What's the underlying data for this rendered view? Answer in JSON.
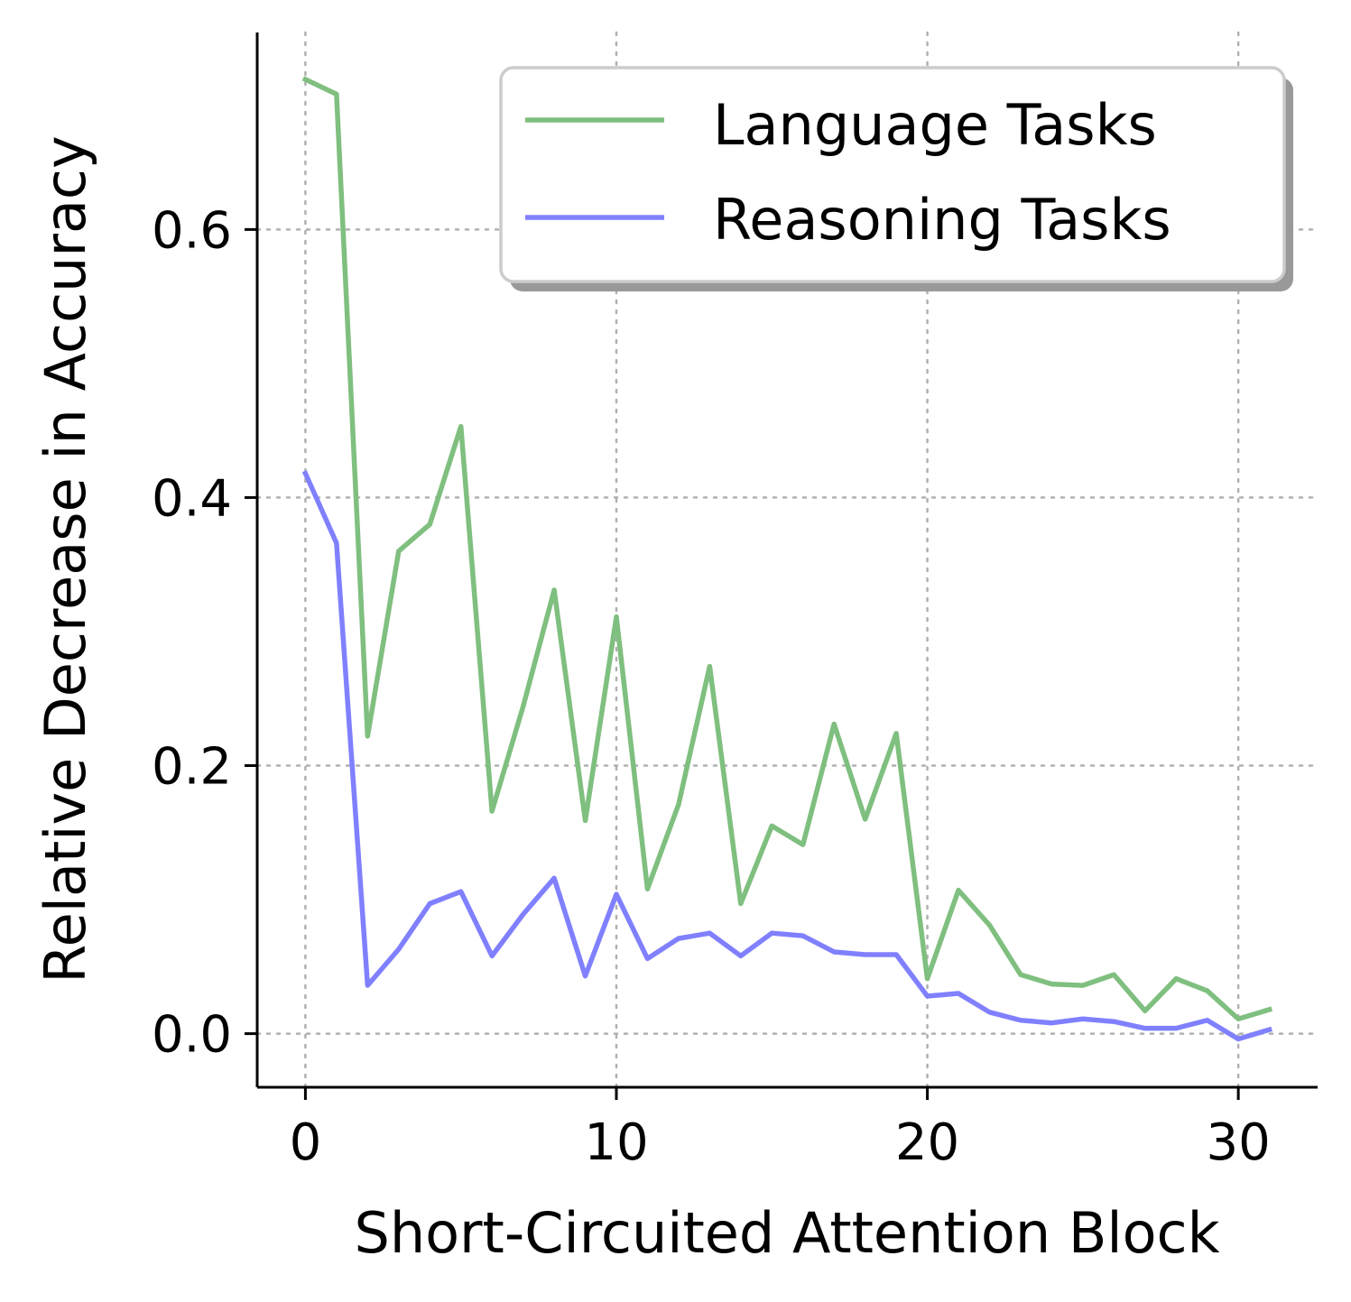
{
  "chart_data": {
    "type": "line",
    "title": "",
    "xlabel": "Short-Circuited Attention Block",
    "ylabel": "Relative Decrease in Accuracy",
    "xlim": [
      -1.55,
      32.55
    ],
    "ylim": [
      -0.04,
      0.747
    ],
    "xticks": [
      0,
      10,
      20,
      30
    ],
    "xtick_labels": [
      "0",
      "10",
      "20",
      "30"
    ],
    "yticks": [
      0.0,
      0.2,
      0.4,
      0.6
    ],
    "ytick_labels": [
      "0.0",
      "0.2",
      "0.4",
      "0.6"
    ],
    "grid": true,
    "legend_position": "top-right",
    "x": [
      0,
      1,
      2,
      3,
      4,
      5,
      6,
      7,
      8,
      9,
      10,
      11,
      12,
      13,
      14,
      15,
      16,
      17,
      18,
      19,
      20,
      21,
      22,
      23,
      24,
      25,
      26,
      27,
      28,
      29,
      30,
      31
    ],
    "series": [
      {
        "name": "Language Tasks",
        "color": "#7fbf7f",
        "values": [
          0.712,
          0.701,
          0.222,
          0.36,
          0.38,
          0.453,
          0.166,
          0.244,
          0.331,
          0.159,
          0.311,
          0.108,
          0.171,
          0.274,
          0.097,
          0.155,
          0.141,
          0.231,
          0.16,
          0.224,
          0.041,
          0.107,
          0.081,
          0.044,
          0.037,
          0.036,
          0.044,
          0.017,
          0.041,
          0.032,
          0.011,
          0.018
        ]
      },
      {
        "name": "Reasoning Tasks",
        "color": "#8080ff",
        "values": [
          0.418,
          0.366,
          0.036,
          0.063,
          0.097,
          0.106,
          0.058,
          0.089,
          0.116,
          0.043,
          0.104,
          0.056,
          0.071,
          0.075,
          0.058,
          0.075,
          0.073,
          0.061,
          0.059,
          0.059,
          0.028,
          0.03,
          0.016,
          0.01,
          0.008,
          0.011,
          0.009,
          0.004,
          0.004,
          0.01,
          -0.004,
          0.003
        ]
      }
    ]
  }
}
